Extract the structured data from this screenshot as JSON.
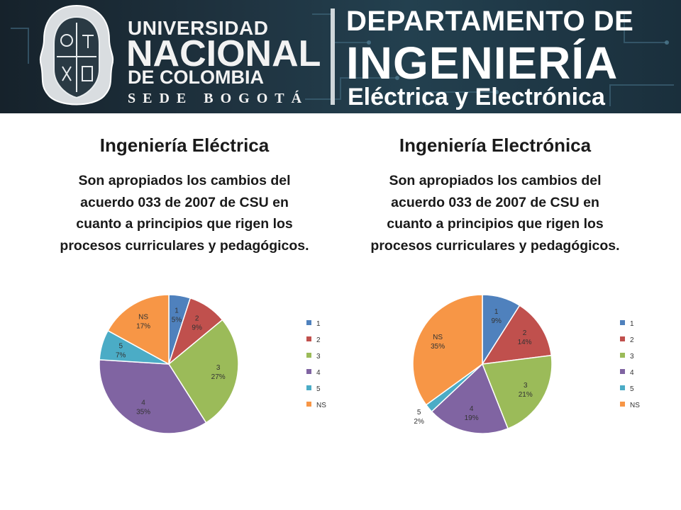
{
  "header": {
    "university_line1": "UNIVERSIDAD",
    "university_line2": "NACIONAL",
    "university_line3": "DE COLOMBIA",
    "university_line4": "SEDE BOGOTÁ",
    "department_line1": "DEPARTAMENTO DE",
    "department_line2": "INGENIERÍA",
    "department_line3": "Eléctrica y Electrónica"
  },
  "left": {
    "title": "Ingeniería Eléctrica",
    "question": "Son apropiados los cambios del acuerdo 033 de 2007 de CSU  en cuanto a principios que rigen los procesos curriculares y pedagógicos."
  },
  "right": {
    "title": "Ingeniería Electrónica",
    "question": "Son apropiados los cambios del acuerdo 033 de 2007 de CSU  en cuanto a principios que rigen los procesos curriculares y pedagógicos."
  },
  "colors": {
    "1": "#4f81bd",
    "2": "#c0504d",
    "3": "#9bbb59",
    "4": "#8064a2",
    "5": "#4bacc6",
    "NS": "#f79646"
  },
  "chart_data": [
    {
      "type": "pie",
      "categories": [
        "1",
        "2",
        "3",
        "4",
        "5",
        "NS"
      ],
      "values": [
        5,
        9,
        27,
        35,
        7,
        17
      ],
      "data_labels": [
        "5%",
        "9%",
        "27%",
        "35%",
        "7%",
        "17%"
      ],
      "legend": [
        "1",
        "2",
        "3",
        "4",
        "5",
        "NS"
      ],
      "legend_position": "right"
    },
    {
      "type": "pie",
      "categories": [
        "1",
        "2",
        "3",
        "4",
        "5",
        "NS"
      ],
      "values": [
        9,
        14,
        21,
        19,
        2,
        35
      ],
      "data_labels": [
        "9%",
        "14%",
        "21%",
        "19%",
        "2%",
        "35%"
      ],
      "legend": [
        "1",
        "2",
        "3",
        "4",
        "5",
        "NS"
      ],
      "legend_position": "right"
    }
  ]
}
